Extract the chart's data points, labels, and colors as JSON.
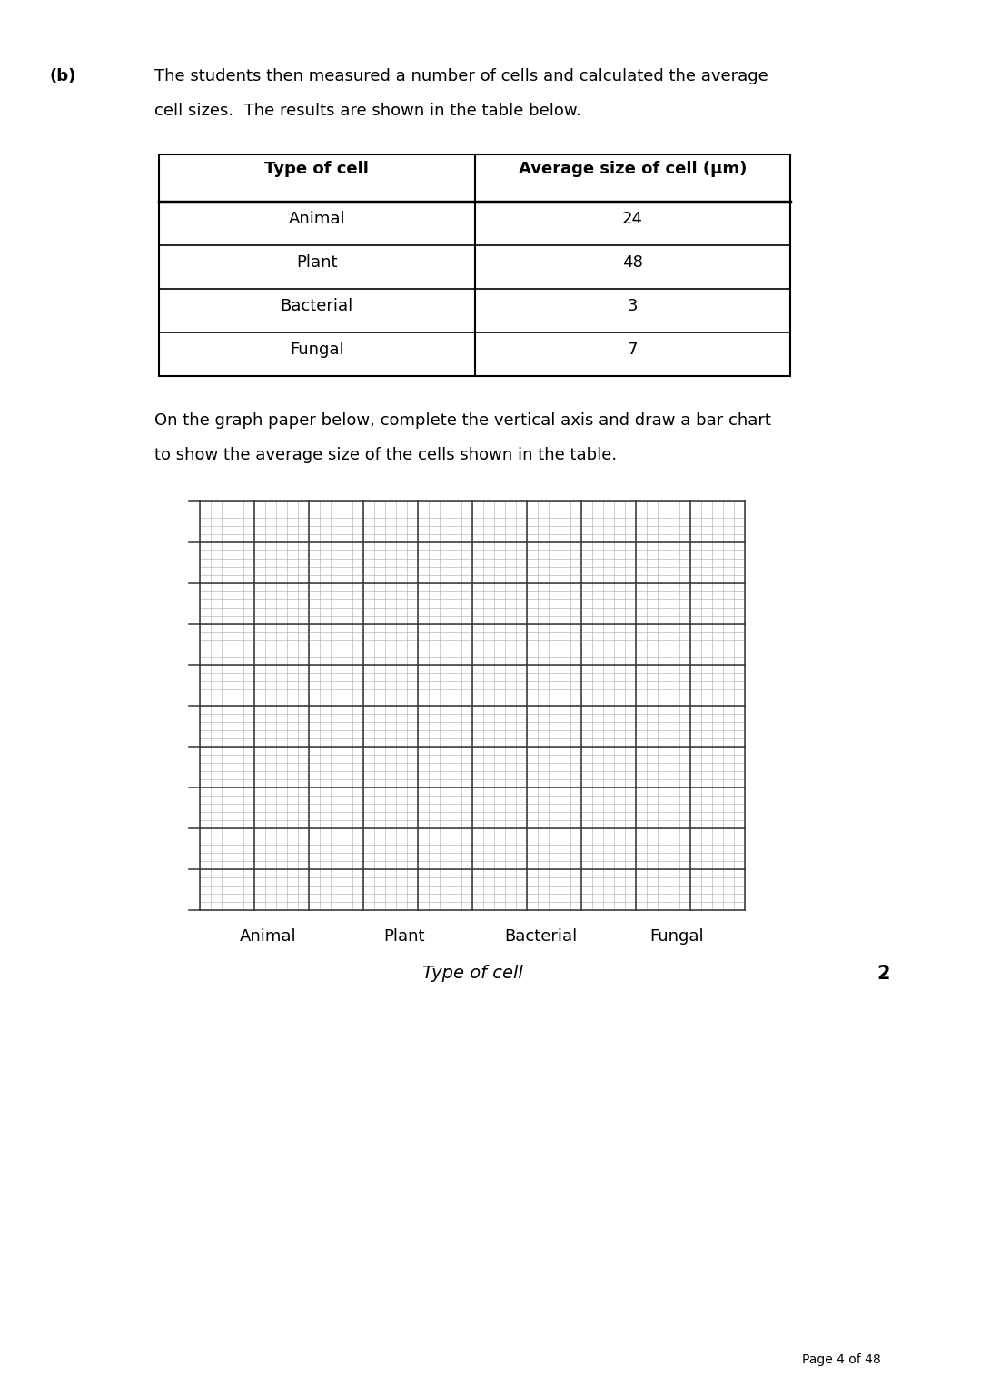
{
  "title_b": "(b)",
  "paragraph1": "The students then measured a number of cells and calculated the average",
  "paragraph2": "cell sizes.  The results are shown in the table below.",
  "paragraph3": "On the graph paper below, complete the vertical axis and draw a bar chart",
  "paragraph4": "to show the average size of the cells shown in the table.",
  "table_headers": [
    "Type of cell",
    "Average size of cell (μm)"
  ],
  "table_rows": [
    [
      "Animal",
      "24"
    ],
    [
      "Plant",
      "48"
    ],
    [
      "Bacterial",
      "3"
    ],
    [
      "Fungal",
      "7"
    ]
  ],
  "graph_categories": [
    "Animal",
    "Plant",
    "Bacterial",
    "Fungal"
  ],
  "graph_xlabel": "Type of cell",
  "graph_tick_labels": [
    "",
    "",
    "",
    ""
  ],
  "page_note": "Page 4 of 48",
  "marks": "2",
  "background_color": "#ffffff",
  "text_color": "#000000",
  "grid_minor_color": "#aaaaaa",
  "grid_major_color": "#333333",
  "table_line_color": "#000000",
  "font_size_body": 13,
  "font_size_label": 13,
  "font_size_page": 10
}
